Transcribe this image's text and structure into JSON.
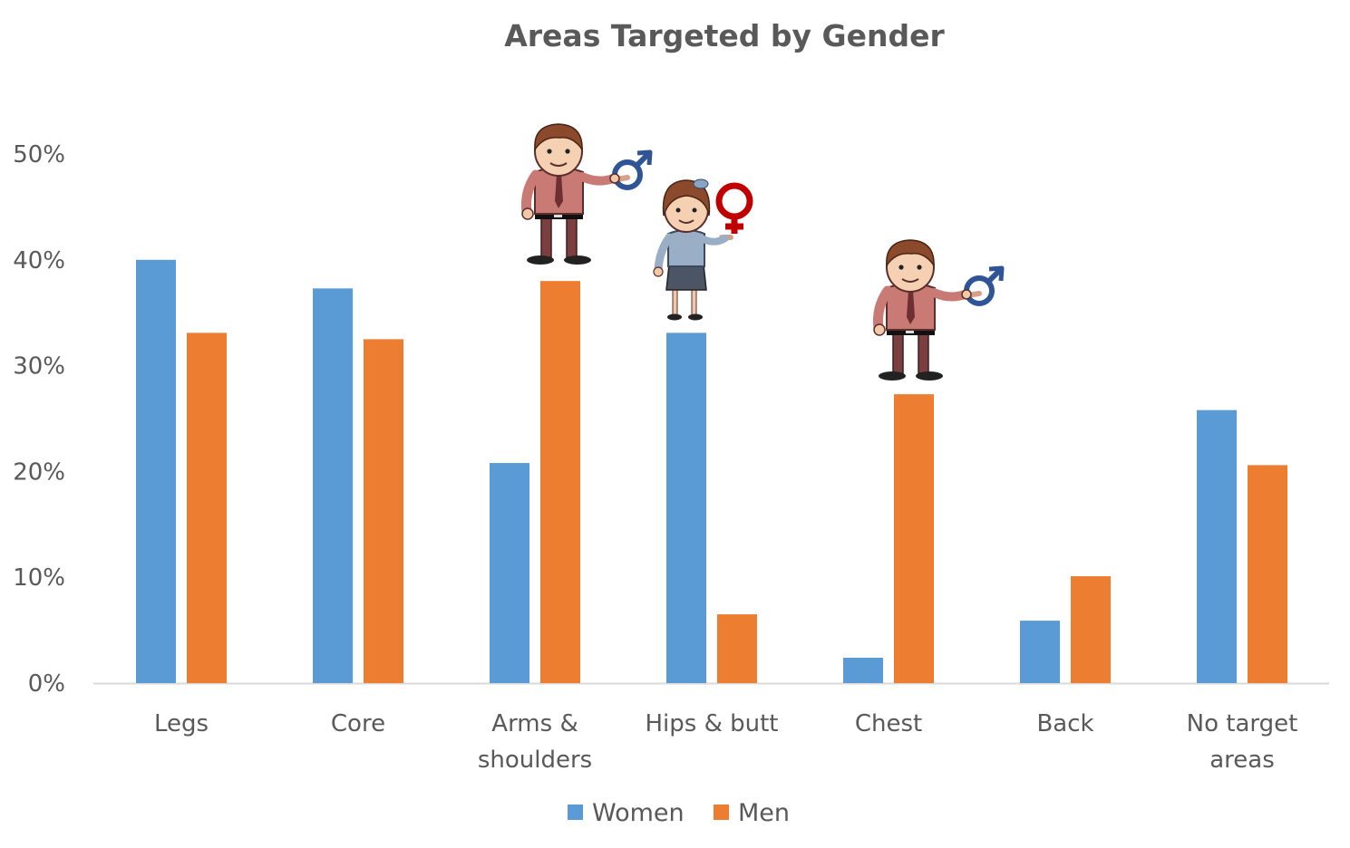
{
  "chart_data": {
    "type": "bar",
    "title": "Areas Targeted by Gender",
    "categories": [
      [
        "Legs"
      ],
      [
        "Core"
      ],
      [
        "Arms &",
        "shoulders"
      ],
      [
        "Hips & butt"
      ],
      [
        "Chest"
      ],
      [
        "Back"
      ],
      [
        "No target",
        "areas"
      ]
    ],
    "series": [
      {
        "name": "Women",
        "color": "#5B9BD5",
        "values": [
          40,
          37.3,
          20.8,
          33.1,
          2.4,
          5.9,
          25.8
        ]
      },
      {
        "name": "Men",
        "color": "#ED7D31",
        "values": [
          33.1,
          32.5,
          38,
          6.5,
          27.3,
          10.1,
          20.6
        ]
      }
    ],
    "y_ticks": [
      "0%",
      "10%",
      "20%",
      "30%",
      "40%",
      "50%"
    ],
    "ylim": [
      0,
      50
    ],
    "grid": false,
    "legend_position": "bottom",
    "illustrations": [
      {
        "category_index": 2,
        "series_index": 1,
        "icon": "man-holding-male-symbol-icon"
      },
      {
        "category_index": 3,
        "series_index": 0,
        "icon": "woman-holding-female-symbol-icon"
      },
      {
        "category_index": 4,
        "series_index": 1,
        "icon": "man-holding-male-symbol-icon"
      }
    ]
  }
}
